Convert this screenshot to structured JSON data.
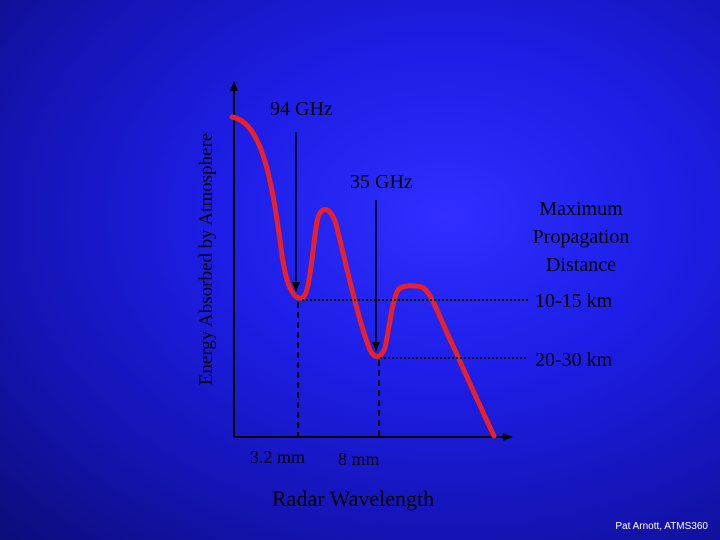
{
  "diagram": {
    "y_axis_label": "Energy Absorbed by Atmosphere",
    "x_axis_label": "Radar Wavelength",
    "annotations": {
      "ghz94": "94 GHz",
      "ghz35": "35 GHz",
      "max_propagation": [
        "Maximum",
        "Propagation",
        "Distance"
      ],
      "range_short": "10-15 km",
      "range_long": "20-30 km",
      "wl_short": "3.2 mm",
      "wl_long": "8 mm"
    },
    "colors": {
      "curve": "#e8202a",
      "axes": "#000000",
      "guides": "#000000"
    }
  },
  "footer": {
    "credit": "Pat Arnott, ATMS360"
  }
}
